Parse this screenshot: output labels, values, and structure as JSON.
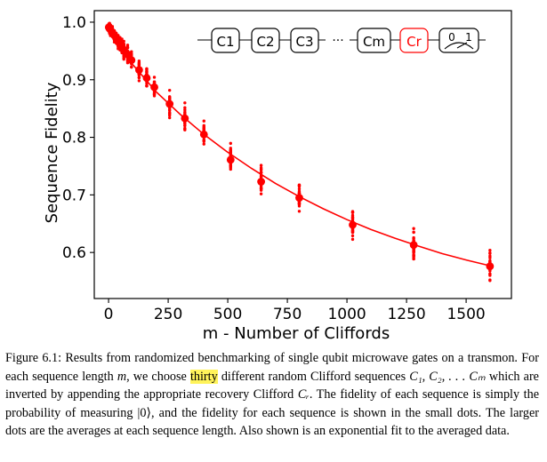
{
  "chart_data": {
    "type": "scatter",
    "xlabel": "m - Number of Cliffords",
    "ylabel": "Sequence Fidelity",
    "xlim": [
      -60,
      1690
    ],
    "ylim": [
      0.52,
      1.02
    ],
    "x_ticks": [
      "0",
      "250",
      "500",
      "750",
      "1000",
      "1250",
      "1500"
    ],
    "y_ticks": [
      "0.6",
      "0.7",
      "0.8",
      "0.9",
      "1.0"
    ],
    "grid": false,
    "averages": {
      "x": [
        1,
        4,
        8,
        16,
        24,
        32,
        40,
        48,
        56,
        64,
        80,
        96,
        128,
        160,
        192,
        256,
        320,
        400,
        512,
        640,
        800,
        1024,
        1280,
        1600
      ],
      "y": [
        0.991,
        0.989,
        0.987,
        0.982,
        0.977,
        0.972,
        0.966,
        0.962,
        0.957,
        0.952,
        0.944,
        0.934,
        0.917,
        0.903,
        0.887,
        0.858,
        0.833,
        0.805,
        0.761,
        0.723,
        0.695,
        0.648,
        0.613,
        0.576
      ]
    },
    "sequence_spread": [
      0.01,
      0.011,
      0.012,
      0.013,
      0.014,
      0.015,
      0.016,
      0.017,
      0.018,
      0.019,
      0.021,
      0.022,
      0.024,
      0.026,
      0.028,
      0.03,
      0.031,
      0.033,
      0.035,
      0.036,
      0.037,
      0.037,
      0.037,
      0.036
    ],
    "fit": {
      "type": "exponential",
      "x": [
        0,
        100,
        200,
        300,
        400,
        500,
        600,
        700,
        800,
        900,
        1000,
        1100,
        1200,
        1300,
        1400,
        1500,
        1600
      ],
      "y": [
        0.992,
        0.927,
        0.879,
        0.84,
        0.805,
        0.774,
        0.746,
        0.72,
        0.697,
        0.676,
        0.657,
        0.64,
        0.625,
        0.611,
        0.598,
        0.587,
        0.577
      ]
    },
    "colors": {
      "data": "#ff0000",
      "fit": "#ff0000",
      "recovery_gate": "#ff0000"
    }
  },
  "inset": {
    "gates": [
      "C1",
      "C2",
      "C3",
      "Cm",
      "Cr"
    ],
    "ellipsis": "···",
    "measure_labels": [
      "0",
      "1"
    ]
  },
  "caption": {
    "p1": "Figure 6.1: Results from randomized benchmarking of single qubit microwave gates on a transmon. For each sequence length ",
    "m1": "m",
    "p2": ", we choose ",
    "highlight": "thirty",
    "p3": " different random Clifford sequences ",
    "seq": "C₁, C₂, . . . Cₘ",
    "p4": " which are inverted by appending the appropriate recovery Clifford ",
    "cr": "Cᵣ",
    "p5": ". The fidelity of each sequence is simply the probability of measuring |0⟩, and the fidelity for each sequence is shown in the small dots. The larger dots are the averages at each sequence length. Also shown is an exponential fit to the averaged data."
  }
}
